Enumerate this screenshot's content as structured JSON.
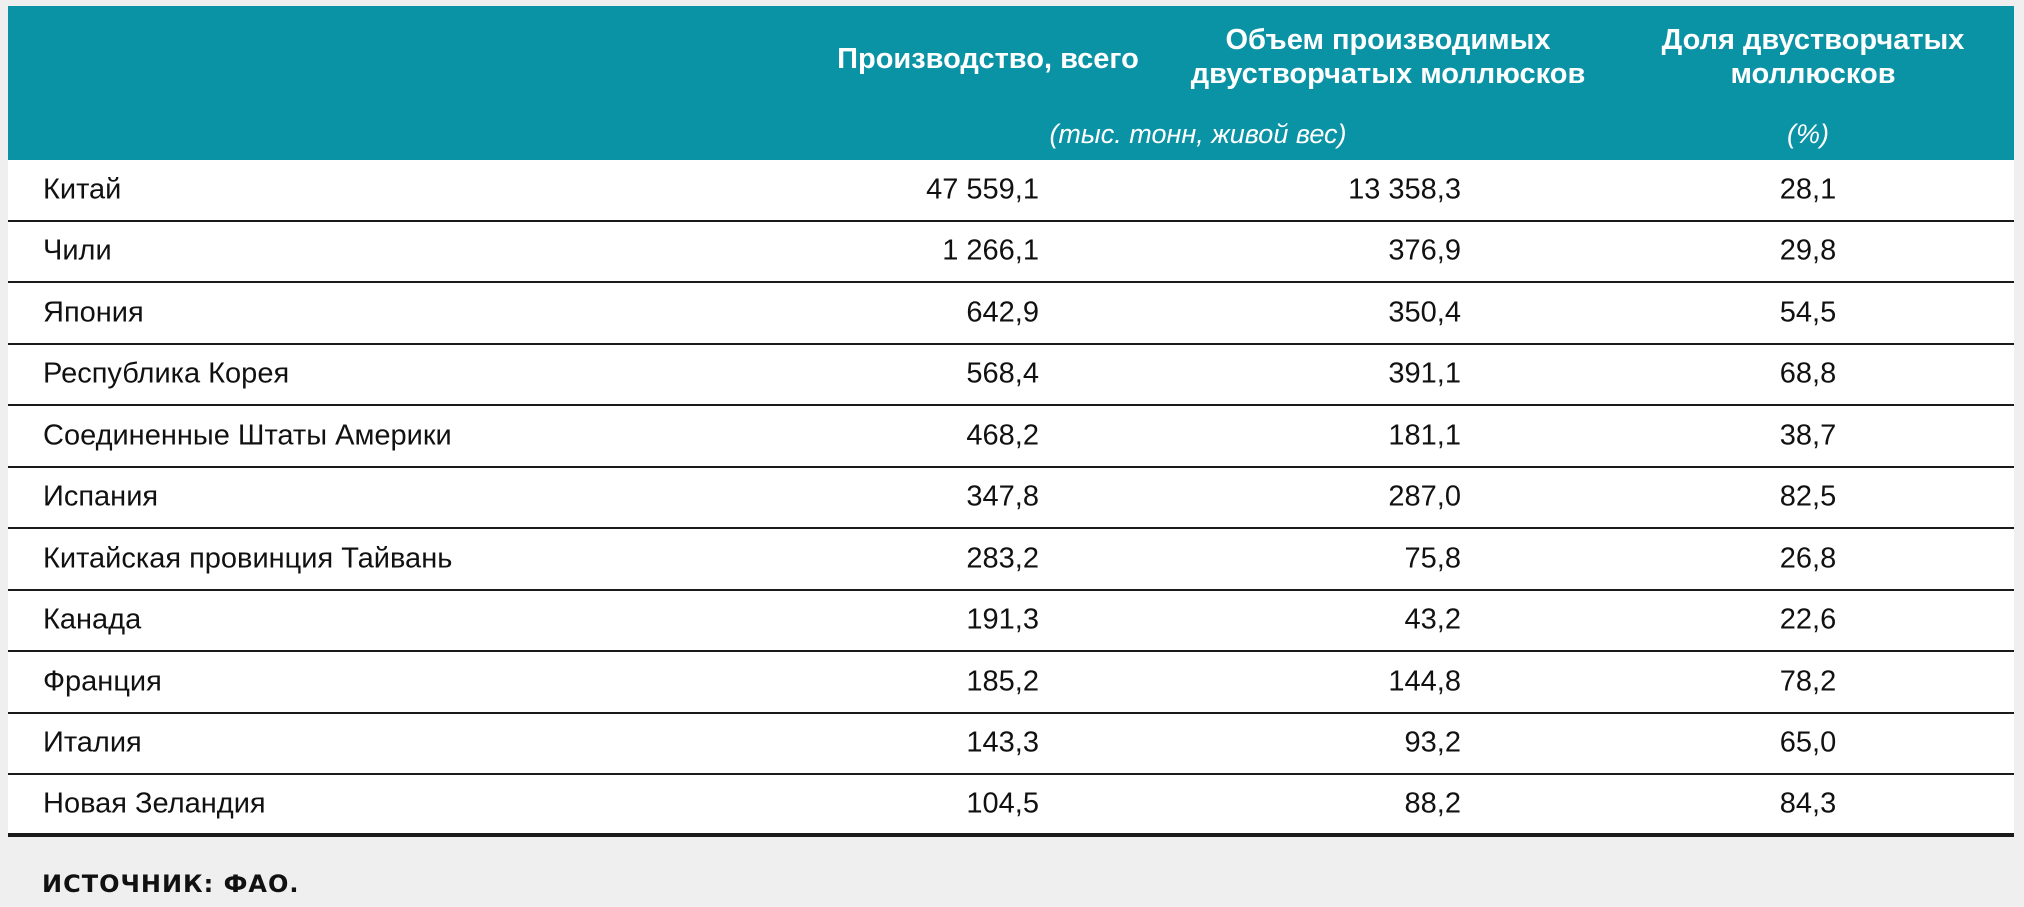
{
  "header": {
    "col_total": "Производство, всего",
    "col_bivalve": "Объем производимых двустворчатых моллюсков",
    "col_share": "Доля двустворчатых моллюсков",
    "unit_volume": "(тыс. тонн, живой вес)",
    "unit_share": "(%)"
  },
  "rows": [
    {
      "country": "Китай",
      "total": "47 559,1",
      "bivalve": "13 358,3",
      "share": "28,1"
    },
    {
      "country": "Чили",
      "total": "1 266,1",
      "bivalve": "376,9",
      "share": "29,8"
    },
    {
      "country": "Япония",
      "total": "642,9",
      "bivalve": "350,4",
      "share": "54,5"
    },
    {
      "country": "Республика Корея",
      "total": "568,4",
      "bivalve": "391,1",
      "share": "68,8"
    },
    {
      "country": "Соединенные Штаты Америки",
      "total": "468,2",
      "bivalve": "181,1",
      "share": "38,7"
    },
    {
      "country": "Испания",
      "total": "347,8",
      "bivalve": "287,0",
      "share": "82,5"
    },
    {
      "country": "Китайская провинция Тайвань",
      "total": "283,2",
      "bivalve": "75,8",
      "share": "26,8"
    },
    {
      "country": "Канада",
      "total": "191,3",
      "bivalve": "43,2",
      "share": "22,6"
    },
    {
      "country": "Франция",
      "total": "185,2",
      "bivalve": "144,8",
      "share": "78,2"
    },
    {
      "country": "Италия",
      "total": "143,3",
      "bivalve": "93,2",
      "share": "65,0"
    },
    {
      "country": "Новая Зеландия",
      "total": "104,5",
      "bivalve": "88,2",
      "share": "84,3"
    }
  ],
  "footer": {
    "source": "ИСТОЧНИК: ФАО."
  },
  "colors": {
    "header_bg": "#0a92a5",
    "header_text": "#ffffff",
    "rule": "#1a1a1a"
  }
}
